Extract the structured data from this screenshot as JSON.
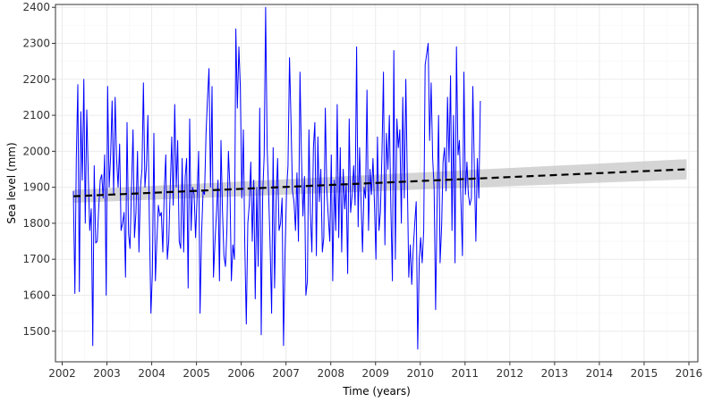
{
  "chart_data": {
    "type": "line",
    "title": "",
    "xlabel": "Time (years)",
    "ylabel": "Sea level (mm)",
    "xlim": [
      2001.85,
      2016.2
    ],
    "ylim": [
      1415,
      2408
    ],
    "x_ticks": [
      2002,
      2003,
      2004,
      2005,
      2006,
      2007,
      2008,
      2009,
      2010,
      2011,
      2012,
      2013,
      2014,
      2015,
      2016
    ],
    "y_ticks": [
      1500,
      1600,
      1700,
      1800,
      1900,
      2000,
      2100,
      2200,
      2300,
      2400
    ],
    "grid": true,
    "legend": "none",
    "series": [
      {
        "role": "observed",
        "color": "#0000ff",
        "x_start": 2002.25,
        "x_step": 0.0333,
        "values": [
          1890,
          1605,
          1980,
          2185,
          1610,
          2110,
          1920,
          2200,
          1800,
          2115,
          1930,
          1780,
          1840,
          1460,
          1960,
          1745,
          1750,
          1840,
          1920,
          1935,
          1870,
          1990,
          1600,
          2180,
          1900,
          1990,
          2140,
          1880,
          2150,
          1980,
          1900,
          2020,
          1780,
          1800,
          1830,
          1650,
          2080,
          1770,
          1730,
          1900,
          2060,
          1760,
          1830,
          2000,
          1720,
          1900,
          1950,
          2190,
          1900,
          1960,
          2100,
          1800,
          1550,
          1660,
          2050,
          1640,
          1750,
          1850,
          1820,
          1830,
          1720,
          1890,
          1990,
          1700,
          1750,
          1900,
          2040,
          1850,
          2130,
          1900,
          2030,
          1750,
          1730,
          1980,
          1720,
          1930,
          1980,
          1620,
          2090,
          1780,
          1900,
          1880,
          1760,
          1870,
          2000,
          1550,
          1770,
          1890,
          1880,
          2050,
          2150,
          2230,
          1900,
          2180,
          1650,
          1750,
          1830,
          1920,
          1640,
          2030,
          1840,
          1710,
          1680,
          1780,
          2000,
          1900,
          1640,
          1740,
          1700,
          2340,
          2120,
          2290,
          2180,
          1870,
          2060,
          1740,
          1520,
          1800,
          1850,
          1970,
          1750,
          1920,
          1590,
          1900,
          1680,
          2120,
          1490,
          1880,
          1990,
          2400,
          2010,
          1880,
          1740,
          1550,
          2010,
          1620,
          1860,
          1980,
          1780,
          1800,
          1870,
          1460,
          1720,
          1890,
          1960,
          2260,
          2080,
          1890,
          1860,
          1780,
          1940,
          1750,
          2220,
          1990,
          1820,
          1930,
          1600,
          1640,
          2060,
          1830,
          1720,
          2010,
          2080,
          1710,
          2040,
          1860,
          1950,
          1720,
          1760,
          2120,
          1890,
          1820,
          1750,
          1990,
          1640,
          1920,
          1780,
          2130,
          1760,
          2010,
          1720,
          1950,
          1840,
          1910,
          1660,
          2090,
          1830,
          1880,
          1960,
          1850,
          2290,
          1790,
          2010,
          1860,
          1720,
          1900,
          1870,
          2170,
          1780,
          1950,
          1880,
          1980,
          1850,
          1700,
          2040,
          1780,
          1830,
          1990,
          2220,
          1740,
          2050,
          1950,
          2100,
          1840,
          1640,
          2280,
          1700,
          2090,
          2010,
          2060,
          1800,
          2150,
          1870,
          2200,
          1930,
          1650,
          1740,
          1630,
          1730,
          1800,
          1860,
          1450,
          1700,
          1760,
          1690,
          1780,
          2240,
          2270,
          2300,
          2030,
          2190,
          1980,
          1900,
          1560,
          1860,
          2100,
          1690,
          1790,
          1970,
          2010,
          1890,
          2150,
          1970,
          2210,
          1780,
          2100,
          1690,
          2290,
          1990,
          2030,
          1860,
          1710,
          2220,
          1880,
          1970,
          1880,
          1850,
          1870,
          2180,
          1950,
          1750,
          1980,
          1870,
          2140
        ]
      },
      {
        "role": "linear-trend",
        "style": "dashed",
        "color": "#000000",
        "x": [
          2002.25,
          2015.95
        ],
        "y": [
          1875,
          1950
        ],
        "band_halfwidth": [
          18,
          28
        ],
        "band_color": "#bebebe"
      }
    ]
  }
}
